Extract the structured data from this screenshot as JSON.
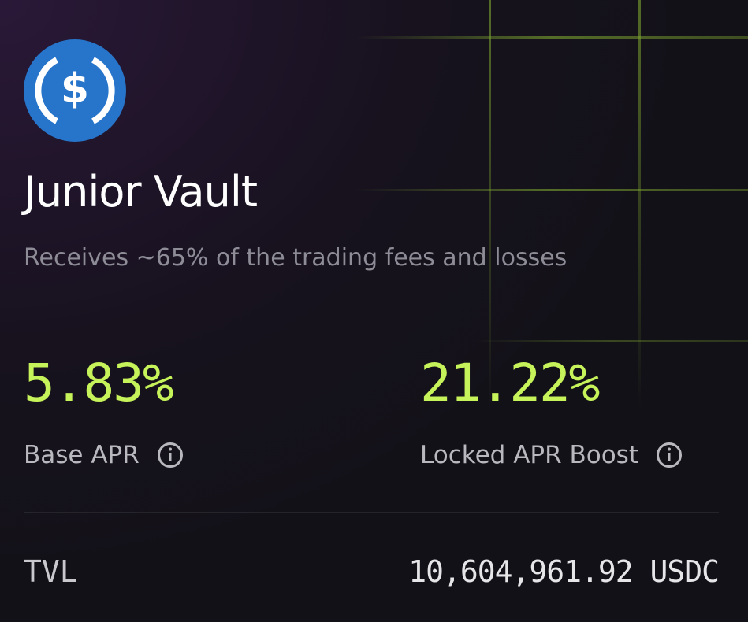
{
  "vault": {
    "title": "Junior Vault",
    "subtitle": "Receives ~65% of the trading fees and losses",
    "stats": [
      {
        "value": "5.83%",
        "label": "Base APR"
      },
      {
        "value": "21.22%",
        "label": "Locked APR Boost"
      }
    ],
    "tvl": {
      "label": "TVL",
      "value": "10,604,961.92 USDC"
    }
  }
}
